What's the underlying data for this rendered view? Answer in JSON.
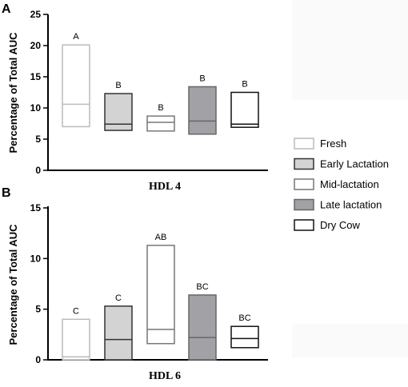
{
  "chart_data": [
    {
      "type": "box",
      "panel": "A",
      "xlabel": "HDL 4",
      "ylabel": "Percentage of Total AUC",
      "ylim": [
        0,
        25
      ],
      "yticks": [
        "0",
        "5",
        "10",
        "15",
        "20",
        "25"
      ],
      "boxes": [
        {
          "group": "Fresh",
          "min": 7.0,
          "median": 10.6,
          "max": 20.1,
          "letter": "A"
        },
        {
          "group": "Early Lactation",
          "min": 6.4,
          "median": 7.4,
          "max": 12.3,
          "letter": "B"
        },
        {
          "group": "Mid-lactation",
          "min": 6.3,
          "median": 7.7,
          "max": 8.7,
          "letter": "B"
        },
        {
          "group": "Late lactation",
          "min": 5.8,
          "median": 7.9,
          "max": 13.4,
          "letter": "B"
        },
        {
          "group": "Dry Cow",
          "min": 6.9,
          "median": 7.4,
          "max": 12.5,
          "letter": "B"
        }
      ]
    },
    {
      "type": "box",
      "panel": "B",
      "xlabel": "HDL 6",
      "ylabel": "Percentage of Total AUC",
      "ylim": [
        0,
        15
      ],
      "yticks": [
        "0",
        "5",
        "10",
        "15"
      ],
      "boxes": [
        {
          "group": "Fresh",
          "min": 0.0,
          "median": 0.3,
          "max": 4.0,
          "letter": "C"
        },
        {
          "group": "Early Lactation",
          "min": 0.0,
          "median": 2.0,
          "max": 5.3,
          "letter": "C"
        },
        {
          "group": "Mid-lactation",
          "min": 1.6,
          "median": 3.0,
          "max": 11.3,
          "letter": "AB"
        },
        {
          "group": "Late lactation",
          "min": 0.0,
          "median": 2.2,
          "max": 6.4,
          "letter": "BC"
        },
        {
          "group": "Dry Cow",
          "min": 1.2,
          "median": 2.1,
          "max": 3.3,
          "letter": "BC"
        }
      ]
    }
  ],
  "legend": [
    {
      "label": "Fresh",
      "fill": "#ffffff",
      "stroke": "#bbbbbb"
    },
    {
      "label": "Early Lactation",
      "fill": "#d3d3d3",
      "stroke": "#333333"
    },
    {
      "label": "Mid-lactation",
      "fill": "#ffffff",
      "stroke": "#777777"
    },
    {
      "label": "Late lactation",
      "fill": "#a2a2a6",
      "stroke": "#666666"
    },
    {
      "label": "Dry Cow",
      "fill": "#ffffff",
      "stroke": "#111111"
    }
  ]
}
